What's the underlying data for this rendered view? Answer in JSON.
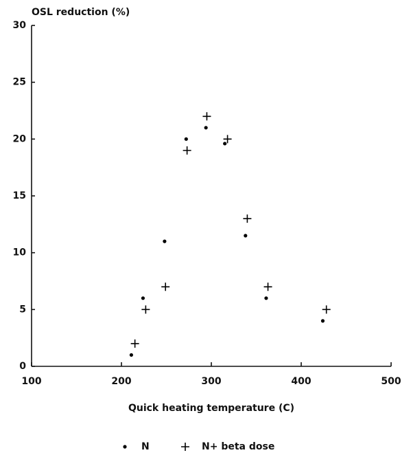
{
  "chart_data": {
    "type": "scatter",
    "ylabel": "OSL reduction (%)",
    "xlabel": "Quick heating temperature (C)",
    "xlim": [
      100,
      500
    ],
    "xticks": [
      100,
      200,
      300,
      400,
      500
    ],
    "ylim": [
      0,
      30
    ],
    "yticks": [
      0,
      5,
      10,
      15,
      20,
      25,
      30
    ],
    "series": [
      {
        "name": "N",
        "color": "#000000",
        "marker": "dot",
        "x": [
          211,
          224,
          248,
          272,
          294,
          315,
          338,
          361,
          424
        ],
        "values": [
          1,
          6,
          11,
          20,
          21,
          19.6,
          11.5,
          6,
          4
        ]
      },
      {
        "name": "N+ beta dose",
        "color": "#000000",
        "marker": "plus",
        "x": [
          215,
          227,
          249,
          273,
          295,
          318,
          340,
          363,
          428
        ],
        "values": [
          2,
          5,
          7,
          19,
          22,
          20,
          13,
          7,
          5
        ]
      }
    ]
  }
}
